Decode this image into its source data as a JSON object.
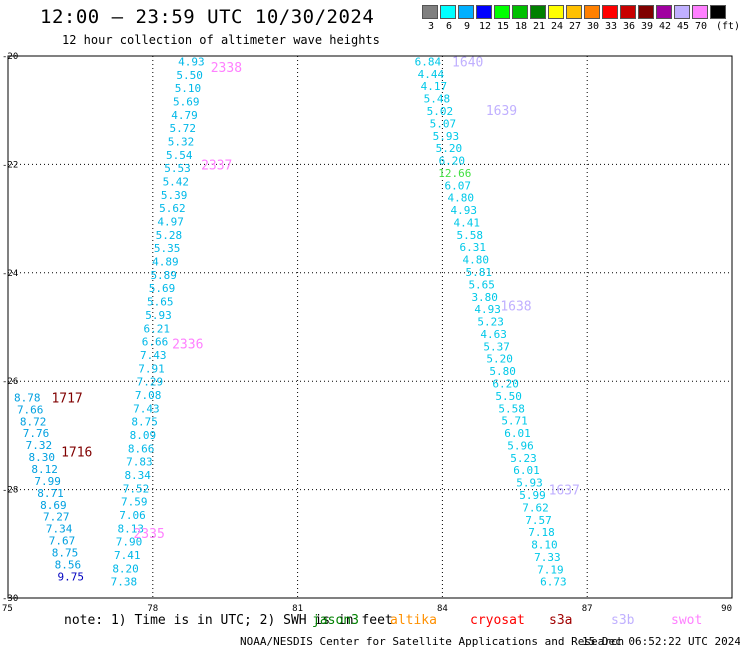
{
  "header": {
    "title": "12:00 – 23:59 UTC 10/30/2024",
    "subtitle": "12 hour collection of altimeter wave heights"
  },
  "color_scale": {
    "unit_label": "(ft)",
    "levels": [
      {
        "label": "3",
        "color": "#808080"
      },
      {
        "label": "6",
        "color": "#00ffff"
      },
      {
        "label": "9",
        "color": "#00b0ff"
      },
      {
        "label": "12",
        "color": "#0000ff"
      },
      {
        "label": "15",
        "color": "#00ff00"
      },
      {
        "label": "18",
        "color": "#00c000"
      },
      {
        "label": "21",
        "color": "#008000"
      },
      {
        "label": "24",
        "color": "#ffff00"
      },
      {
        "label": "27",
        "color": "#ffc000"
      },
      {
        "label": "30",
        "color": "#ff8000"
      },
      {
        "label": "33",
        "color": "#ff0000"
      },
      {
        "label": "36",
        "color": "#c80000"
      },
      {
        "label": "39",
        "color": "#800000"
      },
      {
        "label": "42",
        "color": "#a000a0"
      },
      {
        "label": "45",
        "color": "#c0b0ff"
      },
      {
        "label": "70",
        "color": "#ff80ff"
      },
      {
        "label": "",
        "color": "#000000"
      }
    ]
  },
  "map": {
    "lon_range": [
      75,
      90
    ],
    "lat_range": [
      -30,
      -20
    ],
    "lon_ticks": [
      "75",
      "78",
      "81",
      "84",
      "87",
      "90"
    ],
    "lat_ticks": [
      "-20",
      "-22",
      "-24",
      "-26",
      "-28",
      "-30"
    ],
    "grid": true
  },
  "tracks": [
    {
      "id": "track-2335-2338",
      "color": "#00b8e8",
      "start_lon": 78.8,
      "start_lat": -20.1,
      "end_lon": 77.4,
      "end_lat": -29.7,
      "values": [
        "4.93",
        "5.50",
        "5.10",
        "5.69",
        "4.79",
        "5.72",
        "5.32",
        "5.54",
        "5.53",
        "5.42",
        "5.39",
        "5.62",
        "4.97",
        "5.28",
        "5.35",
        "4.89",
        "5.89",
        "5.69",
        "5.65",
        "5.93",
        "6.21",
        "6.66",
        "7.43",
        "7.91",
        "7.29",
        "7.08",
        "7.43",
        "8.75",
        "8.09",
        "8.66",
        "7.83",
        "8.34",
        "7.52",
        "7.59",
        "7.06",
        "8.13",
        "7.90",
        "7.41",
        "8.20",
        "7.38"
      ]
    },
    {
      "id": "track-1716-1717",
      "color": "#00a0e0",
      "start_lon": 75.4,
      "start_lat": -26.3,
      "end_lon": 76.3,
      "end_lat": -29.6,
      "values": [
        "8.78",
        "7.66",
        "8.72",
        "7.76",
        "7.32",
        "8.30",
        "8.12",
        "7.99",
        "8.71",
        "8.69",
        "7.27",
        "7.34",
        "7.67",
        "8.75",
        "8.56",
        "9.75"
      ],
      "value_colors": {
        "15": "#0000c0"
      }
    },
    {
      "id": "track-1637-1640",
      "color": "#00c8e8",
      "start_lon": 83.7,
      "start_lat": -20.1,
      "end_lon": 86.3,
      "end_lat": -29.7,
      "values": [
        "6.84",
        "4.44",
        "4.17",
        "5.48",
        "5.02",
        "5.07",
        "5.93",
        "5.20",
        "6.20",
        "12.66",
        "6.07",
        "4.80",
        "4.93",
        "4.41",
        "5.58",
        "6.31",
        "4.80",
        "5.81",
        "5.65",
        "3.80",
        "4.93",
        "5.23",
        "4.63",
        "5.37",
        "5.20",
        "5.80",
        "6.20",
        "5.50",
        "5.58",
        "5.71",
        "6.01",
        "5.96",
        "5.23",
        "6.01",
        "5.93",
        "5.99",
        "7.62",
        "7.57",
        "7.18",
        "8.10",
        "7.33",
        "7.19",
        "6.73"
      ],
      "value_colors": {
        "9": "#40e040"
      }
    }
  ],
  "time_labels": [
    {
      "text": "2338",
      "lon": 79.2,
      "lat": -20.2,
      "color": "#ff80ff"
    },
    {
      "text": "2337",
      "lon": 79.0,
      "lat": -22.0,
      "color": "#ff80ff"
    },
    {
      "text": "2336",
      "lon": 78.4,
      "lat": -25.3,
      "color": "#ff80ff"
    },
    {
      "text": "2335",
      "lon": 77.6,
      "lat": -28.8,
      "color": "#ff80ff"
    },
    {
      "text": "1717",
      "lon": 75.9,
      "lat": -26.3,
      "color": "#800000"
    },
    {
      "text": "1716",
      "lon": 76.1,
      "lat": -27.3,
      "color": "#800000"
    },
    {
      "text": "1640",
      "lon": 84.2,
      "lat": -20.1,
      "color": "#c0b0ff"
    },
    {
      "text": "1639",
      "lon": 84.9,
      "lat": -21.0,
      "color": "#c0b0ff"
    },
    {
      "text": "1638",
      "lon": 85.2,
      "lat": -24.6,
      "color": "#c0b0ff"
    },
    {
      "text": "1637",
      "lon": 86.2,
      "lat": -28.0,
      "color": "#c0b0ff"
    }
  ],
  "footer": {
    "note": "note: 1) Time is in UTC; 2) SWH is in feet",
    "satellites": [
      {
        "name": "jason3",
        "color": "#008000"
      },
      {
        "name": "altika",
        "color": "#ff9000"
      },
      {
        "name": "cryosat",
        "color": "#ff0000"
      },
      {
        "name": "s3a",
        "color": "#a00000"
      },
      {
        "name": "s3b",
        "color": "#c0b0ff"
      },
      {
        "name": "swot",
        "color": "#ff80ff"
      }
    ],
    "credit": "NOAA/NESDIS Center for Satellite Applications and Research",
    "timestamp": "15 Dec 06:52:22 UTC 2024"
  }
}
